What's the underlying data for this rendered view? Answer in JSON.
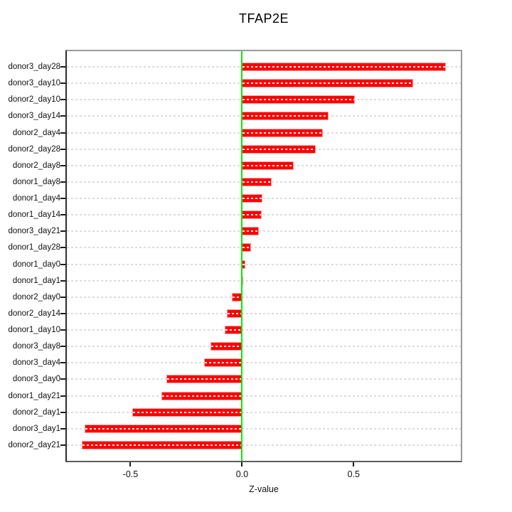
{
  "chart_data": {
    "type": "bar",
    "orientation": "horizontal",
    "title": "TFAP2E",
    "xlabel": "Z-value",
    "ylabel": "",
    "legend": "none",
    "grid": "dotted-horizontal-per-category",
    "categories": [
      "donor3_day28",
      "donor3_day10",
      "donor2_day10",
      "donor3_day14",
      "donor2_day4",
      "donor2_day28",
      "donor2_day8",
      "donor1_day8",
      "donor1_day4",
      "donor1_day14",
      "donor3_day21",
      "donor1_day28",
      "donor1_day0",
      "donor1_day1",
      "donor2_day0",
      "donor2_day14",
      "donor1_day10",
      "donor3_day8",
      "donor3_day4",
      "donor3_day0",
      "donor1_day21",
      "donor2_day1",
      "donor3_day1",
      "donor2_day21"
    ],
    "values": [
      0.913,
      0.765,
      0.505,
      0.386,
      0.363,
      0.331,
      0.23,
      0.133,
      0.092,
      0.088,
      0.075,
      0.039,
      0.016,
      0.002,
      -0.046,
      -0.067,
      -0.078,
      -0.142,
      -0.171,
      -0.339,
      -0.36,
      -0.493,
      -0.705,
      -0.717
    ],
    "xlim": [
      -0.785,
      0.98
    ],
    "xticks": [
      -0.5,
      0.0,
      0.5
    ],
    "xtick_labels": [
      "-0.5",
      "0.0",
      "0.5"
    ],
    "zero_line_x": 0.0,
    "colors": {
      "bar_fill": "#ff0000",
      "bar_border": "#ff9d9d",
      "bar_center_dash": "#ffffff",
      "zero_line": "#00ef00",
      "grid": "#dcdcdc",
      "box": "#9a9a9a",
      "text": "#000000"
    }
  }
}
